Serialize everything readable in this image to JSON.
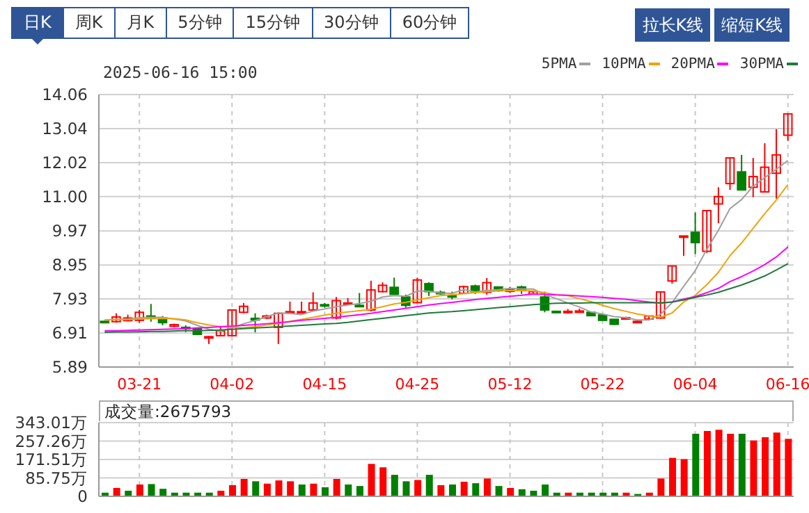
{
  "chart_data": [
    {
      "type": "candlestick",
      "title": "2025-06-16 15:00",
      "annotations": [
        "日K",
        "周K",
        "月K",
        "5分钟",
        "15分钟",
        "30分钟",
        "60分钟",
        "拉长K线",
        "缩短K线"
      ],
      "categories": [
        null,
        null,
        null,
        "03-21",
        null,
        null,
        null,
        null,
        null,
        null,
        null,
        "04-02",
        null,
        null,
        null,
        null,
        null,
        null,
        null,
        "04-15",
        null,
        null,
        null,
        null,
        null,
        null,
        null,
        "04-25",
        null,
        null,
        null,
        null,
        null,
        null,
        null,
        "05-12",
        null,
        null,
        null,
        null,
        null,
        null,
        null,
        "05-22",
        null,
        null,
        null,
        null,
        null,
        null,
        null,
        "06-04",
        null,
        null,
        null,
        null,
        null,
        null,
        null,
        "06-16"
      ],
      "ohlc": [
        [
          7.26,
          7.28,
          7.22,
          7.24
        ],
        [
          7.25,
          7.5,
          7.22,
          7.39
        ],
        [
          7.28,
          7.46,
          7.26,
          7.36
        ],
        [
          7.29,
          7.6,
          7.22,
          7.53
        ],
        [
          7.42,
          7.78,
          7.25,
          7.39
        ],
        [
          7.36,
          7.42,
          7.14,
          7.22
        ],
        [
          7.11,
          7.19,
          7.08,
          7.16
        ],
        [
          7.08,
          7.14,
          6.94,
          7.06
        ],
        [
          7.04,
          7.06,
          6.86,
          6.87
        ],
        [
          6.78,
          6.82,
          6.58,
          6.8
        ],
        [
          6.83,
          7.11,
          6.83,
          6.97
        ],
        [
          6.83,
          7.6,
          6.83,
          7.6
        ],
        [
          7.53,
          7.81,
          7.5,
          7.71
        ],
        [
          7.35,
          7.5,
          6.93,
          7.3
        ],
        [
          7.36,
          7.46,
          7.33,
          7.42
        ],
        [
          7.08,
          7.53,
          6.58,
          7.5
        ],
        [
          7.53,
          7.85,
          7.53,
          7.55
        ],
        [
          7.53,
          7.85,
          7.52,
          7.55
        ],
        [
          7.6,
          8.13,
          7.6,
          7.81
        ],
        [
          7.76,
          7.81,
          7.67,
          7.72
        ],
        [
          7.36,
          7.99,
          7.32,
          7.88
        ],
        [
          7.78,
          7.96,
          7.78,
          7.81
        ],
        [
          7.74,
          8.11,
          7.71,
          7.71
        ],
        [
          7.6,
          8.48,
          7.56,
          8.2
        ],
        [
          8.15,
          8.43,
          8.13,
          8.34
        ],
        [
          8.28,
          8.57,
          8.07,
          8.07
        ],
        [
          7.99,
          8.06,
          7.67,
          7.74
        ],
        [
          7.82,
          8.57,
          7.82,
          8.5
        ],
        [
          8.39,
          8.43,
          8.02,
          8.15
        ],
        [
          8.13,
          8.18,
          8.06,
          8.1
        ],
        [
          8.03,
          8.15,
          7.92,
          8.0
        ],
        [
          8.1,
          8.33,
          8.08,
          8.3
        ],
        [
          8.32,
          8.36,
          8.08,
          8.15
        ],
        [
          8.13,
          8.56,
          8.06,
          8.42
        ],
        [
          8.29,
          8.29,
          8.15,
          8.18
        ],
        [
          8.18,
          8.29,
          8.11,
          8.2
        ],
        [
          8.29,
          8.33,
          8.08,
          8.18
        ],
        [
          8.08,
          8.17,
          8.06,
          8.15
        ],
        [
          7.99,
          8.15,
          7.53,
          7.6
        ],
        [
          7.56,
          7.58,
          7.52,
          7.55
        ],
        [
          7.55,
          7.63,
          7.49,
          7.56
        ],
        [
          7.56,
          7.64,
          7.53,
          7.57
        ],
        [
          7.53,
          7.55,
          7.42,
          7.43
        ],
        [
          7.45,
          7.46,
          7.28,
          7.29
        ],
        [
          7.32,
          7.33,
          7.15,
          7.17
        ],
        [
          7.36,
          7.4,
          7.32,
          7.37
        ],
        [
          7.24,
          7.28,
          7.21,
          7.26
        ],
        [
          7.33,
          7.43,
          7.32,
          7.42
        ],
        [
          7.36,
          8.14,
          7.33,
          8.14
        ],
        [
          8.47,
          8.92,
          8.39,
          8.92
        ],
        [
          9.8,
          9.82,
          9.22,
          9.82
        ],
        [
          9.93,
          10.52,
          9.28,
          9.62
        ],
        [
          9.36,
          10.58,
          9.31,
          10.58
        ],
        [
          10.78,
          11.28,
          10.2,
          11.0
        ],
        [
          11.39,
          12.16,
          11.2,
          12.16
        ],
        [
          11.74,
          12.25,
          11.2,
          11.2
        ],
        [
          11.28,
          12.16,
          10.98,
          11.6
        ],
        [
          11.14,
          12.6,
          11.14,
          11.88
        ],
        [
          11.7,
          13.02,
          10.94,
          12.25
        ],
        [
          12.84,
          13.48,
          12.67,
          13.48
        ]
      ],
      "colors": [
        "#008000",
        "#ff0000",
        "#ff0000",
        "#ff0000",
        "#008000",
        "#008000",
        "#ff0000",
        "#008000",
        "#008000",
        "#ff0000",
        "#ff0000",
        "#ff0000",
        "#ff0000",
        "#008000",
        "#ff0000",
        "#ff0000",
        "#ff0000",
        "#ff0000",
        "#ff0000",
        "#008000",
        "#ff0000",
        "#ff0000",
        "#008000",
        "#ff0000",
        "#ff0000",
        "#008000",
        "#008000",
        "#ff0000",
        "#008000",
        "#008000",
        "#008000",
        "#ff0000",
        "#008000",
        "#ff0000",
        "#008000",
        "#ff0000",
        "#008000",
        "#ff0000",
        "#008000",
        "#008000",
        "#ff0000",
        "#ff0000",
        "#008000",
        "#008000",
        "#008000",
        "#ff0000",
        "#ff0000",
        "#ff0000",
        "#ff0000",
        "#ff0000",
        "#ff0000",
        "#008000",
        "#ff0000",
        "#ff0000",
        "#ff0000",
        "#008000",
        "#ff0000",
        "#ff0000",
        "#ff0000",
        "#ff0000"
      ],
      "series": [
        {
          "name": "5PMA",
          "type": "line",
          "color": "#a0a0a0",
          "values": [
            7.3,
            7.32,
            7.33,
            7.37,
            7.38,
            7.38,
            7.33,
            7.27,
            7.14,
            7.02,
            6.97,
            7.06,
            7.19,
            7.28,
            7.4,
            7.51,
            7.5,
            7.46,
            7.57,
            7.63,
            7.7,
            7.75,
            7.79,
            7.86,
            7.99,
            8.03,
            8.01,
            8.17,
            8.16,
            8.11,
            8.1,
            8.21,
            8.14,
            8.19,
            8.21,
            8.25,
            8.23,
            8.23,
            8.06,
            7.94,
            7.81,
            7.69,
            7.54,
            7.48,
            7.4,
            7.37,
            7.3,
            7.3,
            7.47,
            7.82,
            8.31,
            8.78,
            9.42,
            9.99,
            10.64,
            10.91,
            11.31,
            11.57,
            11.82,
            12.08
          ]
        },
        {
          "name": "10PMA",
          "type": "line",
          "color": "#f0a30a",
          "values": [
            7.3,
            7.31,
            7.32,
            7.33,
            7.34,
            7.35,
            7.34,
            7.3,
            7.22,
            7.15,
            7.1,
            7.08,
            7.07,
            7.1,
            7.15,
            7.2,
            7.26,
            7.32,
            7.38,
            7.45,
            7.5,
            7.54,
            7.58,
            7.62,
            7.7,
            7.78,
            7.83,
            7.9,
            7.97,
            8.03,
            8.06,
            8.09,
            8.12,
            8.15,
            8.17,
            8.18,
            8.18,
            8.17,
            8.12,
            8.06,
            8.03,
            7.94,
            7.85,
            7.74,
            7.64,
            7.56,
            7.48,
            7.42,
            7.38,
            7.51,
            7.84,
            8.04,
            8.36,
            8.73,
            9.23,
            9.61,
            10.05,
            10.49,
            10.9,
            11.36
          ]
        },
        {
          "name": "20PMA",
          "type": "line",
          "color": "#ff00ff",
          "values": [
            6.98,
            6.98,
            6.99,
            7.0,
            7.01,
            7.02,
            7.03,
            7.04,
            7.06,
            7.08,
            7.1,
            7.12,
            7.14,
            7.16,
            7.19,
            7.22,
            7.25,
            7.29,
            7.32,
            7.35,
            7.38,
            7.42,
            7.46,
            7.5,
            7.55,
            7.6,
            7.65,
            7.7,
            7.75,
            7.79,
            7.83,
            7.87,
            7.91,
            7.95,
            7.98,
            8.01,
            8.04,
            8.08,
            8.07,
            8.05,
            8.04,
            8.02,
            8.0,
            7.98,
            7.95,
            7.92,
            7.88,
            7.84,
            7.8,
            7.84,
            7.93,
            8.0,
            8.12,
            8.25,
            8.45,
            8.6,
            8.77,
            8.96,
            9.19,
            9.49
          ]
        },
        {
          "name": "30PMA",
          "type": "line",
          "color": "#1f7a3a",
          "values": [
            6.93,
            6.94,
            6.94,
            6.95,
            6.96,
            6.96,
            6.97,
            6.98,
            6.98,
            6.99,
            7.0,
            7.02,
            7.04,
            7.06,
            7.08,
            7.1,
            7.12,
            7.14,
            7.16,
            7.18,
            7.2,
            7.23,
            7.27,
            7.31,
            7.35,
            7.39,
            7.43,
            7.47,
            7.51,
            7.53,
            7.55,
            7.58,
            7.61,
            7.64,
            7.67,
            7.7,
            7.73,
            7.76,
            7.78,
            7.8,
            7.81,
            7.81,
            7.82,
            7.82,
            7.82,
            7.82,
            7.82,
            7.82,
            7.82,
            7.84,
            7.9,
            7.98,
            8.05,
            8.13,
            8.24,
            8.35,
            8.48,
            8.62,
            8.8,
            8.99
          ]
        }
      ],
      "ylim": [
        5.89,
        14.06
      ],
      "yticks": [
        5.89,
        6.91,
        7.93,
        8.95,
        9.97,
        {
          "value": 11,
          "label": "11.00"
        },
        12.02,
        13.04,
        14.06
      ],
      "grid": true,
      "legend": "top right"
    },
    {
      "type": "bar",
      "annotations": [
        "成交量:2675793"
      ],
      "categories": [
        null,
        null,
        null,
        null,
        null,
        null,
        null,
        null,
        null,
        null,
        null,
        null,
        null,
        null,
        null,
        null,
        null,
        null,
        null,
        null,
        null,
        null,
        null,
        null,
        null,
        null,
        null,
        null,
        null,
        null,
        null,
        null,
        null,
        null,
        null,
        null,
        null,
        null,
        null,
        null,
        null,
        null,
        null,
        null,
        null,
        null,
        null,
        null,
        null,
        null,
        null,
        null,
        null,
        null,
        null,
        null,
        null,
        null,
        null,
        null
      ],
      "values": [
        17,
        39,
        26,
        55,
        57,
        35,
        17,
        17,
        17,
        17,
        26,
        52,
        81,
        70,
        59,
        74,
        70,
        55,
        59,
        42,
        81,
        55,
        48,
        151,
        135,
        100,
        70,
        76,
        100,
        52,
        55,
        68,
        61,
        83,
        48,
        39,
        33,
        26,
        55,
        17,
        17,
        17,
        17,
        17,
        17,
        17,
        11,
        17,
        83,
        179,
        173,
        291,
        304,
        310,
        291,
        291,
        260,
        275,
        297,
        267.58
      ],
      "colors": [
        "#008000",
        "#ff0000",
        "#008000",
        "#ff0000",
        "#008000",
        "#008000",
        "#008000",
        "#008000",
        "#008000",
        "#008000",
        "#ff0000",
        "#ff0000",
        "#ff0000",
        "#008000",
        "#ff0000",
        "#ff0000",
        "#ff0000",
        "#008000",
        "#ff0000",
        "#008000",
        "#ff0000",
        "#008000",
        "#008000",
        "#ff0000",
        "#ff0000",
        "#008000",
        "#008000",
        "#ff0000",
        "#008000",
        "#ff0000",
        "#008000",
        "#ff0000",
        "#008000",
        "#ff0000",
        "#008000",
        "#ff0000",
        "#008000",
        "#008000",
        "#008000",
        "#008000",
        "#ff0000",
        "#008000",
        "#008000",
        "#008000",
        "#008000",
        "#ff0000",
        "#008000",
        "#ff0000",
        "#ff0000",
        "#ff0000",
        "#ff0000",
        "#008000",
        "#ff0000",
        "#ff0000",
        "#ff0000",
        "#008000",
        "#ff0000",
        "#ff0000",
        "#ff0000",
        "#ff0000"
      ],
      "ylim": [
        0,
        343.01
      ],
      "yticks": [
        0,
        {
          "value": 85.75,
          "label": "85.75万"
        },
        {
          "value": 171.51,
          "label": "171.51万"
        },
        {
          "value": 257.26,
          "label": "257.26万"
        },
        {
          "value": 343.01,
          "label": "343.01万"
        }
      ],
      "grid": true,
      "tick_labels": "y"
    }
  ]
}
